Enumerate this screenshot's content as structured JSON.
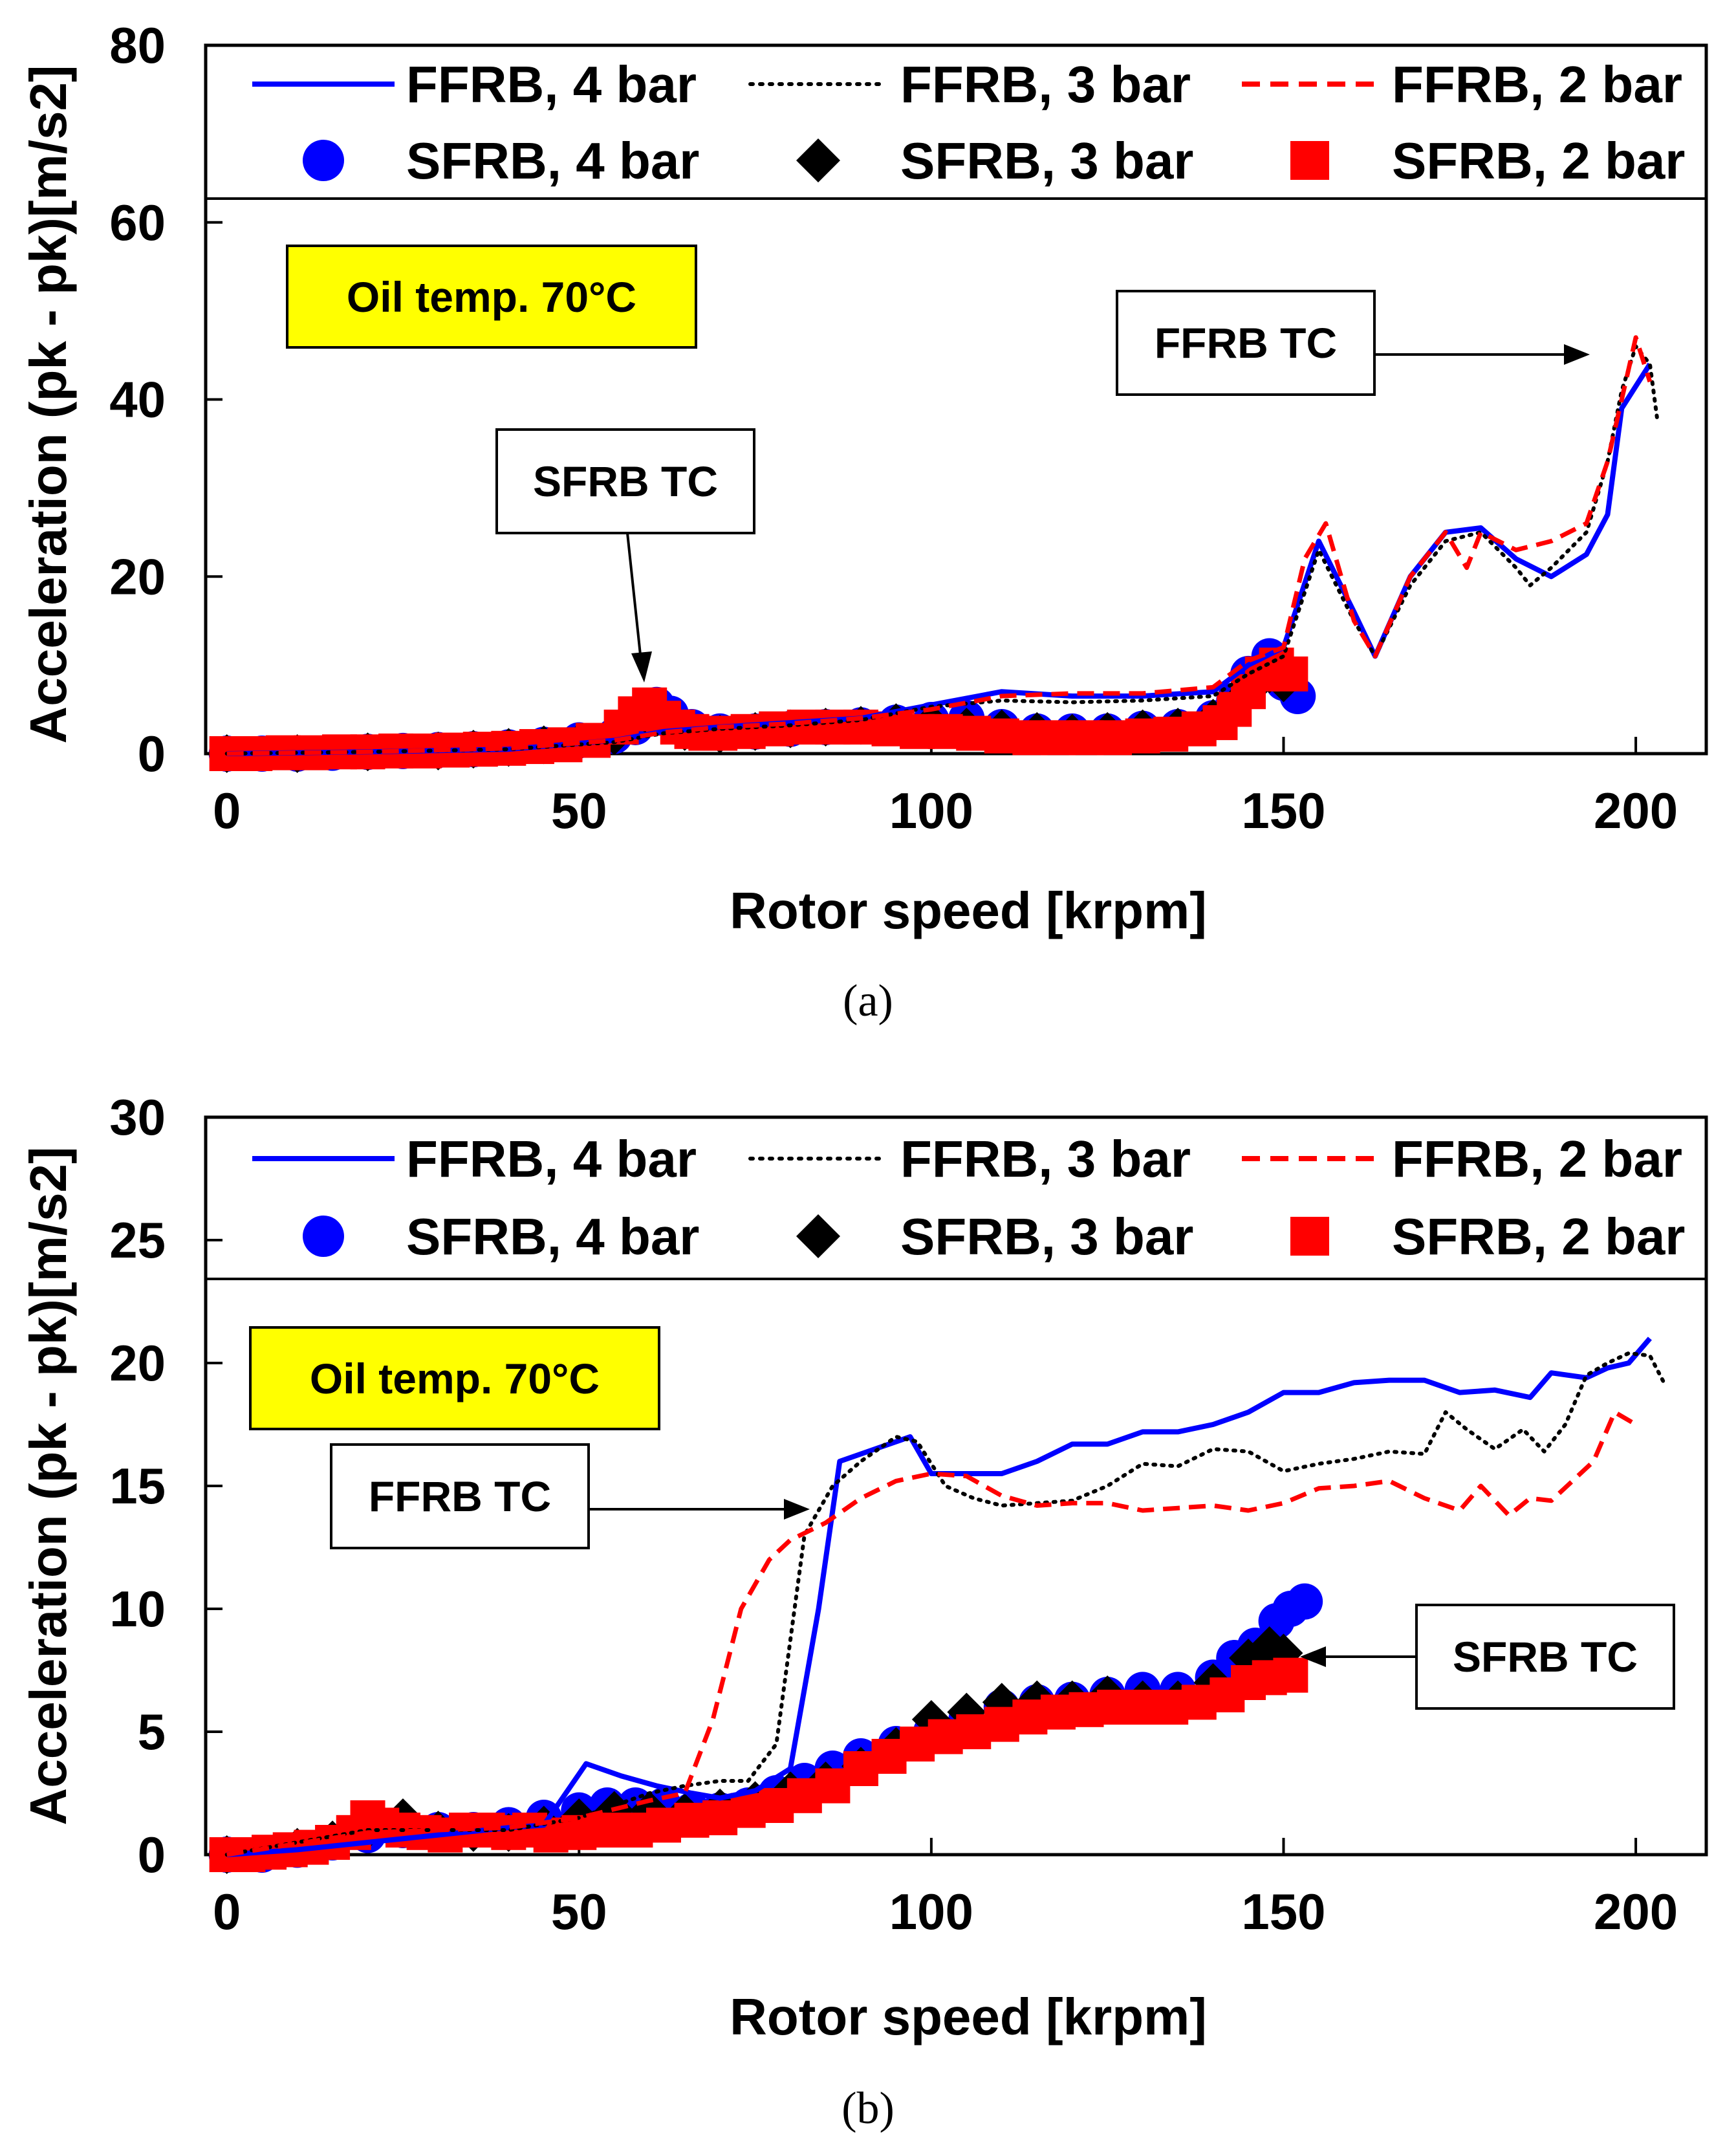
{
  "colors": {
    "blue": "#0000ff",
    "black": "#000000",
    "red": "#ff0000",
    "yellow": "#ffff00"
  },
  "legend": {
    "ffrb4": "FFRB, 4 bar",
    "ffrb3": "FFRB, 3 bar",
    "ffrb2": "FFRB, 2 bar",
    "sfrb4": "SFRB, 4 bar",
    "sfrb3": "SFRB, 3 bar",
    "sfrb2": "SFRB, 2 bar"
  },
  "chart_data": [
    {
      "type": "line",
      "caption": "(a)",
      "xlabel": "Rotor speed  [krpm]",
      "ylabel": "Acceleration (pk - pk)[m/s2]",
      "xlim": [
        -3,
        210
      ],
      "ylim": [
        0,
        80
      ],
      "xticks": [
        "0",
        "50",
        "100",
        "150",
        "200"
      ],
      "yticks": [
        "0",
        "20",
        "40",
        "60",
        "80"
      ],
      "annotations": {
        "oil": "Oil temp. 70°C",
        "ffrb_tc": "FFRB TC",
        "sfrb_tc": "SFRB TC"
      },
      "series": [
        {
          "name": "FFRB, 4 bar",
          "style": "solid",
          "color": "#0000ff",
          "x": [
            0,
            20,
            40,
            55,
            62,
            70,
            80,
            90,
            100,
            110,
            120,
            130,
            140,
            145,
            150,
            155,
            160,
            163,
            168,
            173,
            178,
            183,
            188,
            193,
            196,
            198,
            202
          ],
          "y": [
            0,
            0.2,
            0.5,
            1.5,
            2.5,
            3,
            3.5,
            4,
            5.5,
            7,
            6.5,
            6.5,
            7,
            10,
            12,
            24,
            16,
            11,
            20,
            25,
            25.5,
            22,
            20,
            22.5,
            27,
            39,
            44
          ]
        },
        {
          "name": "FFRB, 3 bar",
          "style": "dotted",
          "color": "#000000",
          "x": [
            0,
            20,
            40,
            55,
            62,
            70,
            80,
            90,
            100,
            110,
            120,
            130,
            140,
            145,
            150,
            155,
            160,
            163,
            168,
            173,
            178,
            183,
            185,
            188,
            193,
            196,
            198,
            200,
            202,
            203
          ],
          "y": [
            0,
            0.2,
            0.5,
            1.3,
            2.3,
            2.8,
            3.2,
            3.8,
            5.3,
            6,
            5.8,
            6,
            6.5,
            9,
            11,
            23,
            15,
            11,
            19,
            24,
            25,
            21,
            19,
            21,
            25,
            33,
            41,
            46,
            44,
            38
          ]
        },
        {
          "name": "FFRB, 2 bar",
          "style": "dashed",
          "color": "#ff0000",
          "x": [
            0,
            20,
            40,
            55,
            62,
            70,
            80,
            90,
            100,
            110,
            120,
            130,
            140,
            145,
            150,
            153,
            156,
            160,
            163,
            168,
            173,
            176,
            178,
            183,
            188,
            193,
            196,
            198,
            200,
            202
          ],
          "y": [
            0,
            0.2,
            0.6,
            1.5,
            2.4,
            3,
            3.4,
            4,
            5,
            6.5,
            6.8,
            6.8,
            7.5,
            10.5,
            12,
            22,
            26,
            15,
            11,
            20,
            25,
            21,
            25,
            23,
            24,
            26,
            33,
            40,
            47,
            42
          ]
        },
        {
          "name": "SFRB, 4 bar",
          "style": "circle",
          "color": "#0000ff",
          "x": [
            0,
            5,
            10,
            15,
            20,
            25,
            30,
            35,
            40,
            45,
            50,
            55,
            58,
            61,
            63,
            66,
            70,
            75,
            80,
            85,
            90,
            95,
            100,
            105,
            110,
            115,
            120,
            125,
            130,
            135,
            140,
            143,
            145,
            148,
            150,
            152
          ],
          "y": [
            0,
            0,
            0,
            0.1,
            0.2,
            0.3,
            0.4,
            0.5,
            0.7,
            1,
            1.5,
            2,
            3,
            5.5,
            4.5,
            3,
            2.5,
            2.5,
            2.8,
            3,
            3.2,
            3.5,
            3.8,
            4,
            3,
            2.5,
            2.5,
            2.5,
            2.8,
            3,
            4,
            6,
            9,
            11,
            8,
            6.5
          ]
        },
        {
          "name": "SFRB, 3 bar",
          "style": "diamond",
          "color": "#000000",
          "x": [
            0,
            10,
            20,
            30,
            35,
            40,
            45,
            50,
            55,
            60,
            65,
            70,
            75,
            80,
            85,
            90,
            95,
            100,
            105,
            110,
            115,
            120,
            125,
            130,
            135,
            140,
            145,
            148,
            150
          ],
          "y": [
            0,
            0,
            0.2,
            0.3,
            0.5,
            0.7,
            1,
            1.3,
            2,
            4,
            2.5,
            2.2,
            2.5,
            2.8,
            3,
            3.2,
            3.5,
            3.5,
            3,
            2.8,
            2.5,
            2.3,
            2.5,
            2.8,
            3,
            4,
            7,
            9,
            8
          ]
        },
        {
          "name": "SFRB, 2 bar",
          "style": "square",
          "color": "#ff0000",
          "x": [
            0,
            4,
            8,
            12,
            16,
            20,
            24,
            28,
            32,
            36,
            40,
            44,
            48,
            52,
            56,
            58,
            60,
            62,
            64,
            66,
            68,
            70,
            74,
            78,
            82,
            86,
            90,
            94,
            98,
            102,
            106,
            110,
            114,
            118,
            122,
            126,
            130,
            134,
            138,
            141,
            143,
            145,
            147,
            149,
            151
          ],
          "y": [
            0,
            0,
            0.1,
            0.1,
            0.2,
            0.2,
            0.3,
            0.3,
            0.4,
            0.5,
            0.6,
            0.8,
            1,
            1.5,
            3,
            4.5,
            5.5,
            4,
            3,
            2.5,
            2.3,
            2.3,
            2.5,
            2.8,
            3,
            3,
            3,
            2.8,
            2.5,
            2.5,
            2.3,
            2,
            1.8,
            1.8,
            1.8,
            1.8,
            2,
            2.2,
            2.8,
            3.5,
            5,
            7,
            9,
            10,
            9
          ]
        }
      ]
    },
    {
      "type": "line",
      "caption": "(b)",
      "xlabel": "Rotor speed  [krpm]",
      "ylabel": "Acceleration (pk - pk)[m/s2]",
      "xlim": [
        -3,
        210
      ],
      "ylim": [
        0,
        30
      ],
      "xticks": [
        "0",
        "50",
        "100",
        "150",
        "200"
      ],
      "yticks": [
        "0",
        "5",
        "10",
        "15",
        "20",
        "25",
        "30"
      ],
      "annotations": {
        "oil": "Oil temp. 70°C",
        "ffrb_tc": "FFRB TC",
        "sfrb_tc": "SFRB TC"
      },
      "series": [
        {
          "name": "FFRB, 4 bar",
          "style": "solid",
          "color": "#0000ff",
          "x": [
            0,
            10,
            20,
            30,
            40,
            45,
            51,
            56,
            61,
            66,
            70,
            75,
            80,
            84,
            87,
            92,
            97,
            100,
            105,
            110,
            115,
            120,
            125,
            130,
            135,
            140,
            145,
            150,
            155,
            160,
            165,
            170,
            175,
            180,
            185,
            188,
            193,
            196,
            199,
            202
          ],
          "y": [
            0,
            0.2,
            0.5,
            0.8,
            1.1,
            1.2,
            3.7,
            3.2,
            2.8,
            2.5,
            2.3,
            2.6,
            3.5,
            10,
            16,
            16.5,
            17,
            15.5,
            15.5,
            15.5,
            16,
            16.7,
            16.7,
            17.2,
            17.2,
            17.5,
            18,
            18.8,
            18.8,
            19.2,
            19.3,
            19.3,
            18.8,
            18.9,
            18.6,
            19.6,
            19.4,
            19.8,
            20,
            21
          ]
        },
        {
          "name": "FFRB, 3 bar",
          "style": "dotted",
          "color": "#000000",
          "x": [
            0,
            20,
            40,
            50,
            55,
            60,
            65,
            70,
            74,
            78,
            82,
            86,
            90,
            95,
            98,
            102,
            106,
            110,
            115,
            120,
            125,
            130,
            135,
            140,
            145,
            150,
            155,
            160,
            165,
            170,
            173,
            176,
            180,
            184,
            187,
            190,
            193,
            196,
            199,
            202,
            204
          ],
          "y": [
            0,
            1,
            1,
            1.5,
            2,
            2.5,
            2.8,
            3,
            3,
            4.5,
            13,
            15,
            16,
            17,
            16.8,
            15,
            14.5,
            14.2,
            14.3,
            14.4,
            15,
            15.9,
            15.8,
            16.5,
            16.4,
            15.6,
            15.9,
            16.1,
            16.4,
            16.3,
            18,
            17.3,
            16.5,
            17.3,
            16.4,
            17.5,
            19.5,
            20,
            20.4,
            20.3,
            19.2
          ]
        },
        {
          "name": "FFRB, 2 bar",
          "style": "dashed",
          "color": "#ff0000",
          "x": [
            0,
            20,
            40,
            50,
            60,
            65,
            69,
            73,
            77,
            80,
            85,
            90,
            95,
            100,
            105,
            110,
            115,
            120,
            125,
            130,
            135,
            140,
            145,
            150,
            155,
            160,
            165,
            170,
            175,
            178,
            182,
            185,
            188,
            191,
            194,
            197,
            200
          ],
          "y": [
            0,
            0.9,
            1.1,
            1.5,
            2.2,
            2.5,
            5.5,
            10,
            12,
            12.8,
            13.5,
            14.5,
            15.2,
            15.5,
            15.4,
            14.6,
            14.2,
            14.3,
            14.3,
            14,
            14.1,
            14.2,
            14,
            14.3,
            14.9,
            15,
            15.2,
            14.5,
            14,
            15,
            13.8,
            14.5,
            14.4,
            15.2,
            16,
            18,
            17.5
          ]
        },
        {
          "name": "SFRB, 4 bar",
          "style": "circle",
          "color": "#0000ff",
          "x": [
            0,
            5,
            10,
            15,
            20,
            25,
            30,
            35,
            40,
            45,
            50,
            54,
            58,
            62,
            66,
            70,
            74,
            78,
            82,
            86,
            90,
            95,
            100,
            105,
            110,
            115,
            120,
            125,
            130,
            135,
            140,
            143,
            146,
            149,
            151,
            153
          ],
          "y": [
            0,
            0,
            0.2,
            0.5,
            0.8,
            1,
            1,
            1,
            1.2,
            1.5,
            1.8,
            2,
            2,
            2,
            1.8,
            1.8,
            2,
            2.5,
            3,
            3.5,
            4,
            4.5,
            5,
            5.5,
            6,
            6.2,
            6.3,
            6.5,
            6.7,
            6.7,
            7.2,
            8,
            8.5,
            9.5,
            10,
            10.3
          ]
        },
        {
          "name": "SFRB, 3 bar",
          "style": "diamond",
          "color": "#000000",
          "x": [
            0,
            10,
            15,
            20,
            25,
            30,
            35,
            40,
            45,
            50,
            55,
            60,
            65,
            70,
            75,
            80,
            85,
            90,
            95,
            100,
            105,
            110,
            115,
            120,
            125,
            130,
            135,
            140,
            145,
            148,
            150
          ],
          "y": [
            0,
            0.3,
            0.6,
            1,
            1.5,
            1,
            0.9,
            0.9,
            1.2,
            1.5,
            1.8,
            1.8,
            1.7,
            1.9,
            2.2,
            2.6,
            3,
            3.6,
            4.4,
            5.5,
            5.8,
            6.2,
            6.3,
            6.3,
            6.5,
            6.3,
            6.3,
            7,
            8,
            8.5,
            8.2
          ]
        },
        {
          "name": "SFRB, 2 bar",
          "style": "square",
          "color": "#ff0000",
          "x": [
            0,
            3,
            6,
            9,
            12,
            15,
            18,
            20,
            22,
            25,
            28,
            31,
            34,
            37,
            40,
            43,
            46,
            50,
            54,
            58,
            62,
            66,
            70,
            74,
            78,
            82,
            86,
            90,
            94,
            98,
            102,
            106,
            110,
            114,
            118,
            122,
            126,
            130,
            134,
            138,
            142,
            145,
            148,
            151
          ],
          "y": [
            0,
            0,
            0.1,
            0.2,
            0.3,
            0.5,
            0.9,
            1.5,
            1.2,
            1,
            0.9,
            0.8,
            1,
            1,
            0.9,
            1,
            0.8,
            0.9,
            1,
            1,
            1.2,
            1.4,
            1.5,
            1.8,
            2,
            2.4,
            2.8,
            3.5,
            4,
            4.5,
            4.8,
            5,
            5.3,
            5.6,
            5.8,
            5.9,
            6,
            6,
            6,
            6.2,
            6.5,
            7,
            7.2,
            7.3
          ]
        }
      ]
    }
  ]
}
